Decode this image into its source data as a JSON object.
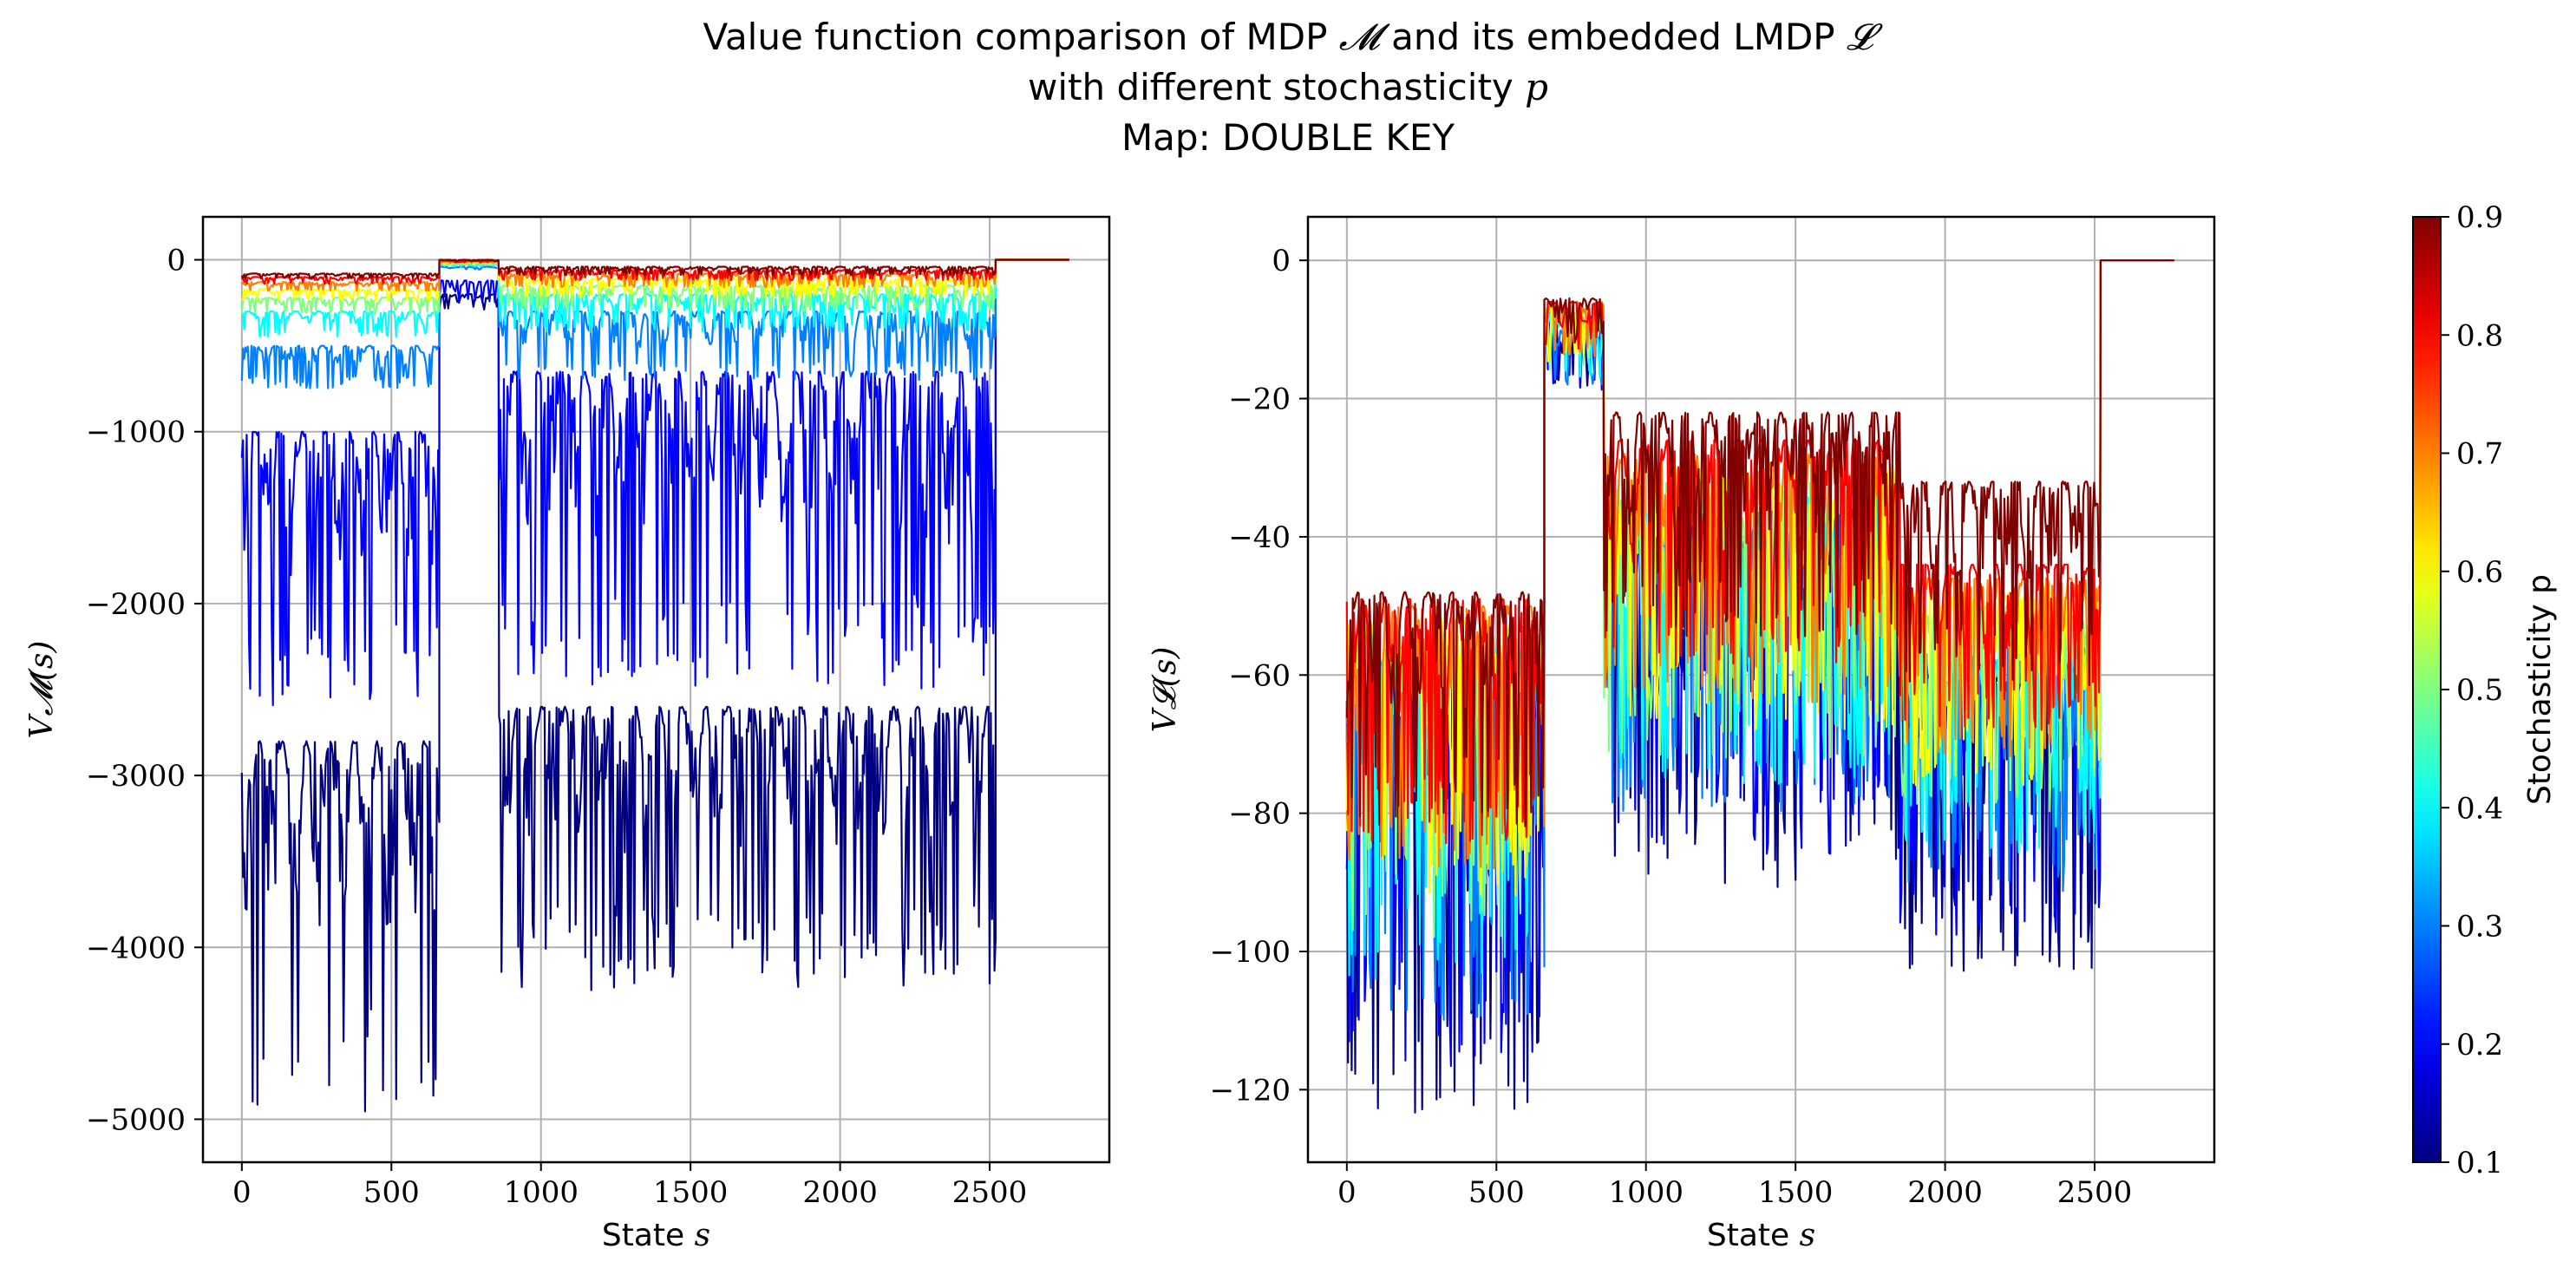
{
  "title": {
    "line1_prefix": "Value function comparison of MDP ",
    "line1_sym1": "𝓜",
    "line1_mid": " and its embedded LMDP ",
    "line1_sym2": "𝓛",
    "line2_prefix": "with different stochasticity ",
    "line2_sym": "p",
    "line3": "Map: DOUBLE KEY"
  },
  "colors": {
    "grid": "#b0b0b0",
    "series_low": "#00007f",
    "series_high": "#7f0000"
  },
  "colorbar": {
    "label": "Stochasticity p",
    "ticks": [
      "0.1",
      "0.2",
      "0.3",
      "0.4",
      "0.5",
      "0.6",
      "0.7",
      "0.8",
      "0.9"
    ],
    "range": [
      0.1,
      0.9
    ],
    "colormap": "jet"
  },
  "chart_data": [
    {
      "type": "line",
      "panel": "left",
      "title": "",
      "xlabel_text": "State ",
      "xlabel_sym": "s",
      "ylabel": "V𝓜(s)",
      "xlim": [
        -130,
        2900
      ],
      "ylim": [
        -5250,
        250
      ],
      "xticks": [
        0,
        500,
        1000,
        1500,
        2000,
        2500
      ],
      "xtick_labels": [
        "0",
        "500",
        "1000",
        "1500",
        "2000",
        "2500"
      ],
      "yticks": [
        0,
        -1000,
        -2000,
        -3000,
        -4000,
        -5000
      ],
      "ytick_labels": [
        "0",
        "−1000",
        "−2000",
        "−3000",
        "−4000",
        "−5000"
      ],
      "grid": true,
      "x_range": [
        0,
        2770
      ],
      "series_p": [
        0.1,
        0.2,
        0.3,
        0.4,
        0.5,
        0.6,
        0.7,
        0.8,
        0.9
      ],
      "segments": [
        {
          "x": [
            0,
            660
          ],
          "tops": [
            -2800,
            -1000,
            -500,
            -300,
            -220,
            -170,
            -130,
            -100,
            -80
          ],
          "bottoms": [
            -5000,
            -2600,
            -750,
            -450,
            -320,
            -240,
            -180,
            -140,
            -110
          ]
        },
        {
          "x": [
            660,
            860
          ],
          "tops": [
            -200,
            -120,
            -40,
            -25,
            -20,
            -15,
            -10,
            -5,
            0
          ],
          "bottoms": [
            -300,
            -250,
            -60,
            -40,
            -30,
            -25,
            -20,
            -15,
            -10
          ]
        },
        {
          "x": [
            860,
            2520
          ],
          "tops": [
            -2600,
            -650,
            -300,
            -200,
            -150,
            -110,
            -80,
            -60,
            -40
          ],
          "bottoms": [
            -4250,
            -2500,
            -700,
            -420,
            -300,
            -220,
            -160,
            -120,
            -90
          ]
        },
        {
          "x": [
            2520,
            2770
          ],
          "tops": [
            0,
            0,
            0,
            0,
            0,
            0,
            0,
            0,
            0
          ],
          "bottoms": [
            0,
            0,
            0,
            0,
            0,
            0,
            0,
            0,
            0
          ]
        }
      ]
    },
    {
      "type": "line",
      "panel": "right",
      "title": "",
      "xlabel_text": "State ",
      "xlabel_sym": "s",
      "ylabel": "V𝓛(s)",
      "xlim": [
        -130,
        2900
      ],
      "ylim": [
        -130.5,
        6.3
      ],
      "xticks": [
        0,
        500,
        1000,
        1500,
        2000,
        2500
      ],
      "xtick_labels": [
        "0",
        "500",
        "1000",
        "1500",
        "2000",
        "2500"
      ],
      "yticks": [
        0,
        -20,
        -40,
        -60,
        -80,
        -100,
        -120
      ],
      "ytick_labels": [
        "0",
        "−20",
        "−40",
        "−60",
        "−80",
        "−100",
        "−120"
      ],
      "grid": true,
      "x_range": [
        0,
        2770
      ],
      "series_p": [
        0.1,
        0.2,
        0.3,
        0.4,
        0.5,
        0.6,
        0.7,
        0.8,
        0.9
      ],
      "segments": [
        {
          "x": [
            0,
            660
          ],
          "tops": [
            -62,
            -60,
            -58,
            -56,
            -54,
            -52,
            -50,
            -49,
            -48
          ],
          "bottoms": [
            -124,
            -118,
            -110,
            -104,
            -98,
            -92,
            -88,
            -85,
            -82
          ]
        },
        {
          "x": [
            660,
            860
          ],
          "tops": [
            -8,
            -8,
            -7.5,
            -7,
            -6.5,
            -6.5,
            -6,
            -6,
            -5.5
          ],
          "bottoms": [
            -20,
            -19,
            -18,
            -17,
            -16,
            -15,
            -14,
            -13,
            -12
          ]
        },
        {
          "x": [
            860,
            1850
          ],
          "tops": [
            -40,
            -38,
            -36,
            -34,
            -32,
            -30,
            -28,
            -26,
            -22
          ],
          "bottoms": [
            -91,
            -86,
            -80,
            -76,
            -72,
            -68,
            -64,
            -60,
            -55
          ]
        },
        {
          "x": [
            1850,
            2520
          ],
          "tops": [
            -60,
            -58,
            -56,
            -52,
            -50,
            -48,
            -46,
            -44,
            -32
          ],
          "bottoms": [
            -103,
            -98,
            -92,
            -86,
            -80,
            -76,
            -72,
            -68,
            -62
          ]
        },
        {
          "x": [
            2520,
            2770
          ],
          "tops": [
            0,
            0,
            0,
            0,
            0,
            0,
            0,
            0,
            0
          ],
          "bottoms": [
            0,
            0,
            0,
            0,
            0,
            0,
            0,
            0,
            0
          ]
        }
      ]
    }
  ]
}
